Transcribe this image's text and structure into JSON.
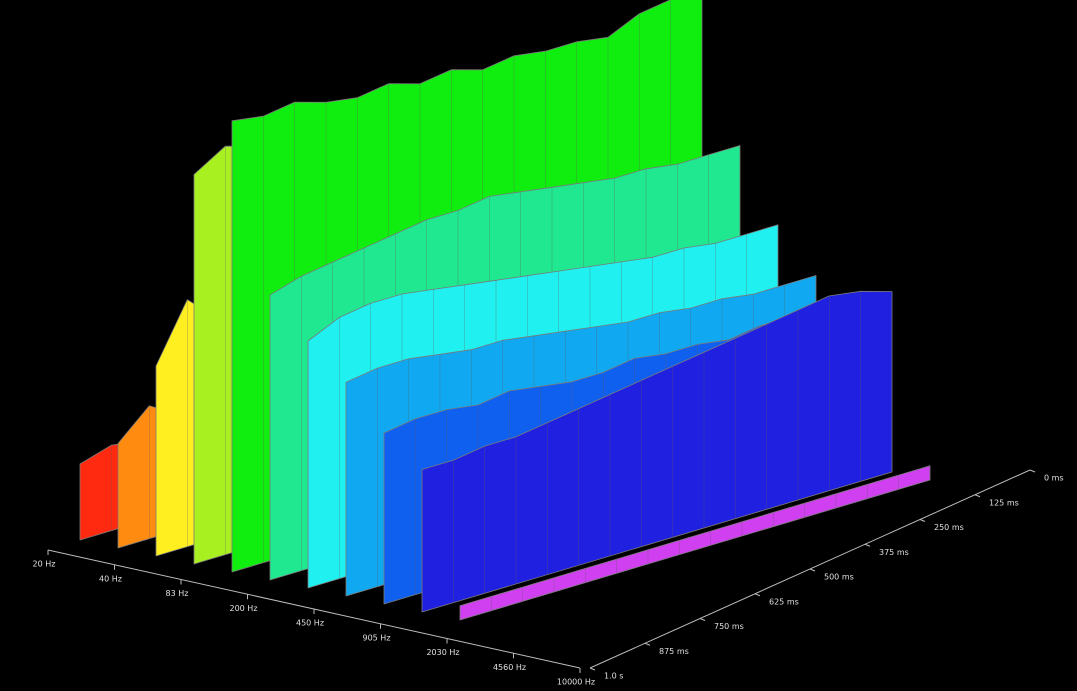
{
  "chart_data": {
    "type": "waterfall",
    "xtick_labels": [
      "20 Hz",
      "40 Hz",
      "83 Hz",
      "200 Hz",
      "450 Hz",
      "905 Hz",
      "2030 Hz",
      "4560 Hz",
      "10000 Hz"
    ],
    "ztick_labels": [
      "0 ms",
      "125 ms",
      "250 ms",
      "375 ms",
      "500 ms",
      "625 ms",
      "750 ms",
      "875 ms",
      "1.0 s"
    ],
    "ylim": [
      0,
      100
    ],
    "series": [
      {
        "color": "#ff2a10",
        "values": [
          16,
          18,
          17,
          14,
          12,
          13,
          10,
          9,
          8,
          8,
          7,
          6,
          6,
          5,
          5,
          4
        ]
      },
      {
        "color": "#ff8c10",
        "values": [
          22,
          28,
          24,
          30,
          20,
          26,
          18,
          22,
          16,
          18,
          14,
          12,
          10,
          9,
          8,
          7
        ]
      },
      {
        "color": "#ffee20",
        "values": [
          40,
          52,
          46,
          60,
          38,
          50,
          36,
          44,
          30,
          34,
          26,
          22,
          20,
          18,
          16,
          14
        ]
      },
      {
        "color": "#a8f020",
        "values": [
          82,
          86,
          84,
          80,
          78,
          74,
          70,
          66,
          60,
          56,
          50,
          46,
          40,
          36,
          30,
          26
        ]
      },
      {
        "color": "#10ee10",
        "values": [
          95,
          94,
          95,
          93,
          92,
          93,
          91,
          92,
          90,
          91,
          90,
          90,
          89,
          92,
          93,
          92
        ]
      },
      {
        "color": "#20e890",
        "values": [
          60,
          62,
          63,
          64,
          65,
          66,
          66,
          67,
          66,
          65,
          64,
          63,
          63,
          62,
          62,
          62
        ]
      },
      {
        "color": "#20f0f0",
        "values": [
          52,
          55,
          56,
          56,
          55,
          54,
          53,
          52,
          51,
          50,
          49,
          48,
          48,
          47,
          47,
          47
        ]
      },
      {
        "color": "#10a8f0",
        "values": [
          45,
          46,
          46,
          45,
          44,
          44,
          43,
          42,
          41,
          40,
          40,
          39,
          39,
          38,
          38,
          38
        ]
      },
      {
        "color": "#1060f0",
        "values": [
          36,
          37,
          37,
          36,
          37,
          36,
          35,
          35,
          36,
          35,
          35,
          34,
          35,
          35,
          35,
          35
        ]
      },
      {
        "color": "#2020e0",
        "values": [
          30,
          30,
          31,
          31,
          32,
          33,
          34,
          35,
          36,
          37,
          38,
          39,
          40,
          41,
          40,
          38
        ]
      },
      {
        "color": "#d040f0",
        "values": [
          3,
          3,
          3,
          3,
          3,
          3,
          3,
          3,
          3,
          3,
          3,
          3,
          3,
          3,
          3,
          3
        ]
      }
    ]
  }
}
